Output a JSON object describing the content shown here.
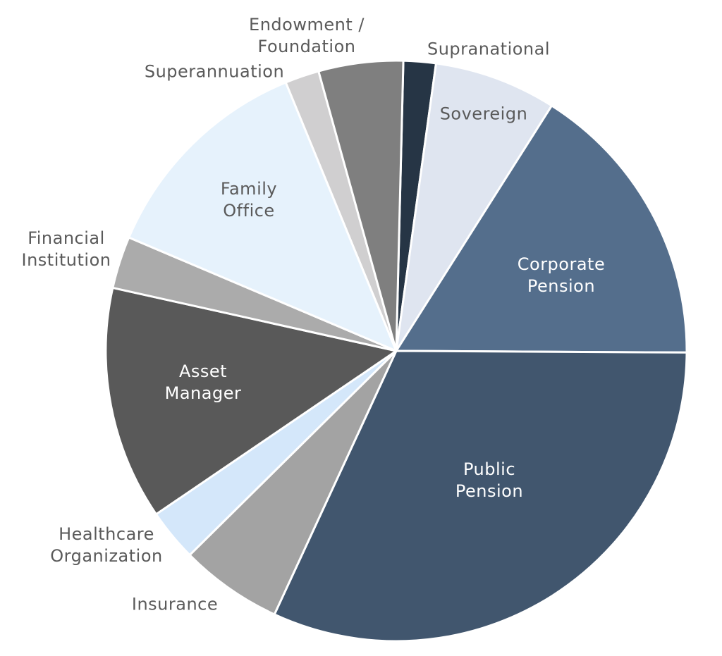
{
  "chart_data": {
    "type": "pie",
    "categories": [
      "Supranational",
      "Sovereign",
      "Corporate Pension",
      "Public Pension",
      "Insurance",
      "Healthcare Organization",
      "Asset Manager",
      "Financial Institution",
      "Family Office",
      "Superannuation",
      "Endowment / Foundation"
    ],
    "values": [
      1.8,
      6.8,
      16.1,
      31.8,
      5.7,
      2.9,
      13.0,
      2.9,
      12.4,
      1.9,
      4.7
    ],
    "colors": [
      "#263545",
      "#dfe5f0",
      "#546e8c",
      "#41566e",
      "#a3a3a3",
      "#d4e7fa",
      "#595959",
      "#ababab",
      "#e6f2fc",
      "#d0cfd0",
      "#7f7f7f"
    ]
  }
}
